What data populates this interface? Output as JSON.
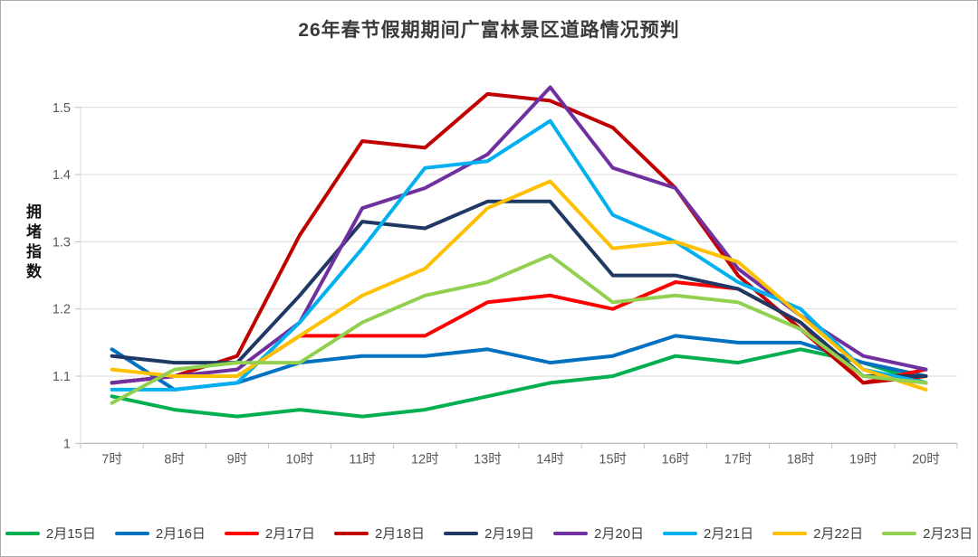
{
  "frame": {
    "background": "#ffffff",
    "border_color": "#ababab"
  },
  "chart_data": {
    "type": "line",
    "title": "26年春节假期期间广富林景区道路情况预判",
    "ylabel": "拥堵指数",
    "xlabel": "",
    "categories": [
      "7时",
      "8时",
      "9时",
      "10时",
      "11时",
      "12时",
      "13时",
      "14时",
      "15时",
      "16时",
      "17时",
      "18时",
      "19时",
      "20时"
    ],
    "series": [
      {
        "name": "2月15日",
        "color": "#00B050",
        "values": [
          1.07,
          1.05,
          1.04,
          1.05,
          1.04,
          1.05,
          1.07,
          1.09,
          1.1,
          1.13,
          1.12,
          1.14,
          1.12,
          1.09
        ]
      },
      {
        "name": "2月16日",
        "color": "#0070C0",
        "values": [
          1.14,
          1.08,
          1.09,
          1.12,
          1.13,
          1.13,
          1.14,
          1.12,
          1.13,
          1.16,
          1.15,
          1.15,
          1.12,
          1.1
        ]
      },
      {
        "name": "2月17日",
        "color": "#FF0000",
        "values": [
          1.09,
          1.1,
          1.1,
          1.16,
          1.16,
          1.16,
          1.21,
          1.22,
          1.2,
          1.24,
          1.23,
          1.18,
          1.09,
          1.11
        ]
      },
      {
        "name": "2月18日",
        "color": "#C00000",
        "values": [
          1.09,
          1.1,
          1.13,
          1.31,
          1.45,
          1.44,
          1.52,
          1.51,
          1.47,
          1.38,
          1.25,
          1.17,
          1.09,
          1.1
        ]
      },
      {
        "name": "2月19日",
        "color": "#1F3864",
        "values": [
          1.13,
          1.12,
          1.12,
          1.22,
          1.33,
          1.32,
          1.36,
          1.36,
          1.25,
          1.25,
          1.23,
          1.18,
          1.1,
          1.1
        ]
      },
      {
        "name": "2月20日",
        "color": "#7030A0",
        "values": [
          1.09,
          1.1,
          1.11,
          1.18,
          1.35,
          1.38,
          1.43,
          1.53,
          1.41,
          1.38,
          1.26,
          1.19,
          1.13,
          1.11
        ]
      },
      {
        "name": "2月21日",
        "color": "#00B0F0",
        "values": [
          1.08,
          1.08,
          1.09,
          1.18,
          1.29,
          1.41,
          1.42,
          1.48,
          1.34,
          1.3,
          1.24,
          1.2,
          1.11,
          1.09
        ]
      },
      {
        "name": "2月22日",
        "color": "#FFC000",
        "values": [
          1.11,
          1.1,
          1.1,
          1.16,
          1.22,
          1.26,
          1.35,
          1.39,
          1.29,
          1.3,
          1.27,
          1.19,
          1.11,
          1.08
        ]
      },
      {
        "name": "2月23日",
        "color": "#92D050",
        "values": [
          1.06,
          1.11,
          1.12,
          1.12,
          1.18,
          1.22,
          1.24,
          1.28,
          1.21,
          1.22,
          1.21,
          1.17,
          1.1,
          1.09
        ]
      }
    ],
    "ylim": [
      1.0,
      1.55
    ],
    "yticks": [
      1,
      1.1,
      1.2,
      1.3,
      1.4,
      1.5
    ],
    "grid": true,
    "legend_position": "bottom",
    "styles": {
      "gridline_color": "#d9d9d9",
      "axis_color": "#bfbfbf",
      "tick_label_color": "#595959",
      "line_width": 4
    }
  }
}
